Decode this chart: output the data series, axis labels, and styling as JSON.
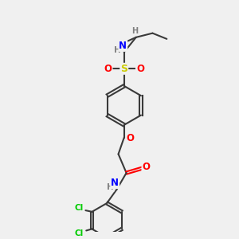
{
  "background_color": "#f0f0f0",
  "bond_color": "#3a3a3a",
  "atom_colors": {
    "N": "#0000ff",
    "O": "#ff0000",
    "S": "#cccc00",
    "Cl": "#00cc00",
    "H": "#808080",
    "C": "#3a3a3a"
  },
  "figsize": [
    3.0,
    3.0
  ],
  "dpi": 100
}
